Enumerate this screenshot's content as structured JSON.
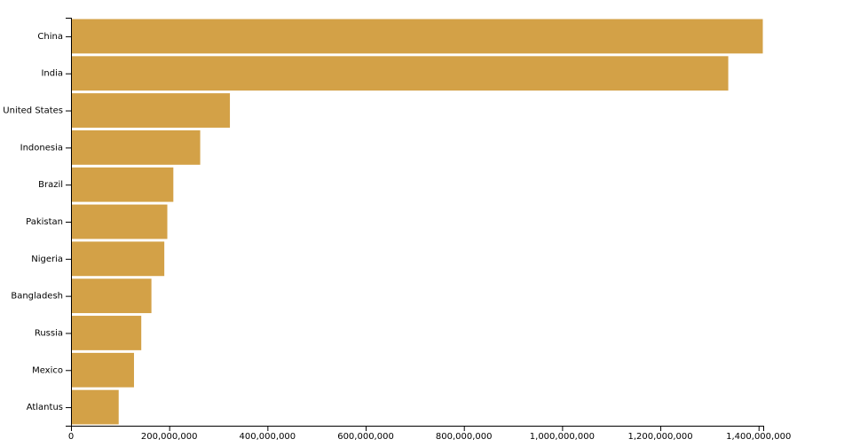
{
  "colors": {
    "bar": "#d3a147",
    "bar_stroke": "#ffffff",
    "axis": "#000000",
    "background": "#ffffff"
  },
  "chart_data": {
    "type": "bar",
    "orientation": "horizontal",
    "title": "",
    "xlabel": "",
    "ylabel": "",
    "categories": [
      "China",
      "India",
      "United States",
      "Indonesia",
      "Brazil",
      "Pakistan",
      "Nigeria",
      "Bangladesh",
      "Russia",
      "Mexico",
      "Atlantus"
    ],
    "values": [
      1409517397,
      1339180127,
      324459463,
      263991379,
      209288278,
      197015955,
      190886311,
      164669751,
      143989754,
      129163276,
      98000000
    ],
    "xlim": [
      0,
      1409517397
    ],
    "x_ticks": [
      0,
      200000000,
      400000000,
      600000000,
      800000000,
      1000000000,
      1200000000,
      1400000000
    ],
    "x_tick_labels": [
      "0",
      "200,000,000",
      "400,000,000",
      "600,000,000",
      "800,000,000",
      "1,000,000,000",
      "1,200,000,000",
      "1,400,000,000"
    ],
    "grid": false,
    "legend": "none"
  }
}
